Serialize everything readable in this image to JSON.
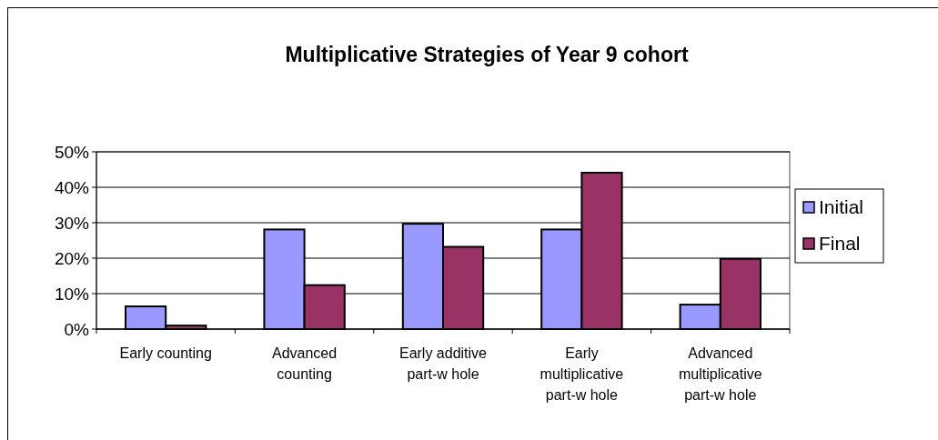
{
  "chart_data": {
    "type": "bar",
    "title": "Multiplicative Strategies of Year 9 cohort",
    "categories": [
      "Early counting",
      "Advanced counting",
      "Early additive part-w hole",
      "Early multiplicative part-w hole",
      "Advanced multiplicative part-w hole"
    ],
    "series": [
      {
        "name": "Initial",
        "color": "#9999ff",
        "values": [
          6.4,
          28.1,
          29.7,
          28.1,
          6.9
        ]
      },
      {
        "name": "Final",
        "color": "#993366",
        "values": [
          1,
          12.4,
          23.2,
          44.1,
          19.8
        ]
      }
    ],
    "ylim": [
      0,
      50
    ],
    "yticks": [
      {
        "value": 0,
        "label": "0%"
      },
      {
        "value": 10,
        "label": "10%"
      },
      {
        "value": 20,
        "label": "20%"
      },
      {
        "value": 30,
        "label": "30%"
      },
      {
        "value": 40,
        "label": "40%"
      },
      {
        "value": 50,
        "label": "50%"
      }
    ],
    "grid": "y",
    "legend": "right"
  }
}
